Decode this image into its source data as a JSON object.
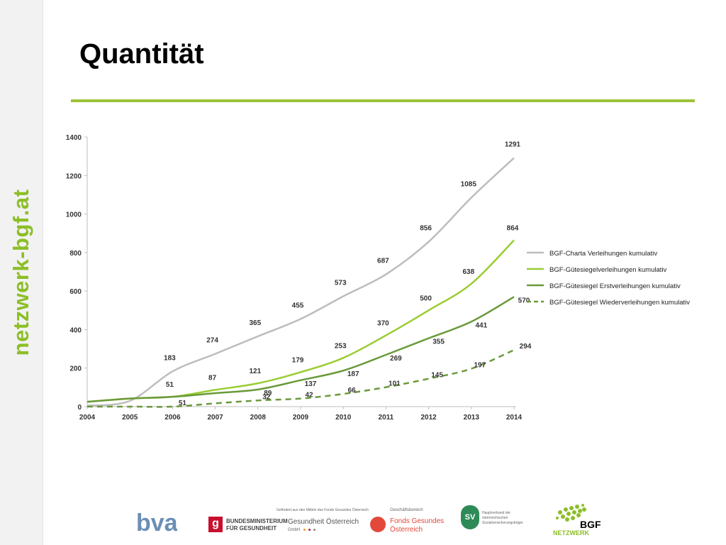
{
  "slide": {
    "title": "Quantität",
    "sidebar_text": "netzwerk-bgf.at"
  },
  "chart_data": {
    "type": "line",
    "title": "",
    "xlabel": "",
    "ylabel": "",
    "x": [
      "2004",
      "2005",
      "2006",
      "2007",
      "2008",
      "2009",
      "2010",
      "2011",
      "2012",
      "2013",
      "2014"
    ],
    "ylim": [
      0,
      1400
    ],
    "yticks": [
      0,
      200,
      400,
      600,
      800,
      1000,
      1200,
      1400
    ],
    "grid": false,
    "legend_position": "right",
    "series": [
      {
        "name": "BGF-Charta Verleihungen kumulativ",
        "color": "#bdbdbd",
        "dashed": false,
        "values": [
          5,
          30,
          183,
          274,
          365,
          455,
          573,
          687,
          856,
          1085,
          1291
        ],
        "labels": [
          "",
          "",
          "183",
          "274",
          "365",
          "455",
          "573",
          "687",
          "856",
          "1085",
          "1291"
        ]
      },
      {
        "name": "BGF-Gütesiegelverleihungen kumulativ",
        "color": "#9acd32",
        "dashed": false,
        "values": [
          25,
          42,
          51,
          87,
          121,
          179,
          253,
          370,
          500,
          638,
          864
        ],
        "labels": [
          "",
          "",
          "51",
          "87",
          "121",
          "179",
          "253",
          "370",
          "500",
          "638",
          "864"
        ]
      },
      {
        "name": "BGF-Gütesiegel Erstverleihungen kumulativ",
        "color": "#6a9a3a",
        "dashed": false,
        "values": [
          25,
          42,
          51,
          70,
          89,
          137,
          187,
          269,
          355,
          441,
          570
        ],
        "labels": [
          "",
          "",
          "51",
          "",
          "89",
          "137",
          "187",
          "269",
          "355",
          "441",
          "570"
        ]
      },
      {
        "name": "BGF-Gütesiegel Wiederverleihungen kumulativ",
        "color": "#6a9a3a",
        "dashed": true,
        "values": [
          0,
          0,
          0,
          17,
          32,
          42,
          66,
          101,
          145,
          197,
          294
        ],
        "labels": [
          "",
          "",
          "",
          "",
          "32",
          "42",
          "66",
          "101",
          "145",
          "197",
          "294"
        ]
      }
    ]
  },
  "footer": {
    "bva": "bva",
    "bmg_line1": "BUNDESMINISTERIUM",
    "bmg_line2": "FÜR GESUNDHEIT",
    "goe_small": "Gefördert aus den Mitteln des Fonds Gesundes Österreich",
    "goe_main": "Gesundheit Österreich",
    "goe_gmbh": "GmbH",
    "fgoe_small": "Geschäftsbereich",
    "fgoe_line1": "Fonds Gesundes",
    "fgoe_line2": "Österreich",
    "sv_mark": "SV",
    "sv_line1": "Hauptverband der",
    "sv_line2": "österreichischen",
    "sv_line3": "Sozialversicherungsträger",
    "bgf_line1": "BGF",
    "bgf_line2": "NETZWERK"
  },
  "colors": {
    "accent": "#9dc23a",
    "sidebar_text": "#8cbf26",
    "bva_blue": "#6b8fb5",
    "bmg_red": "#c8102e",
    "fgoe_red": "#e2493b",
    "sv_green": "#2e8b57"
  }
}
